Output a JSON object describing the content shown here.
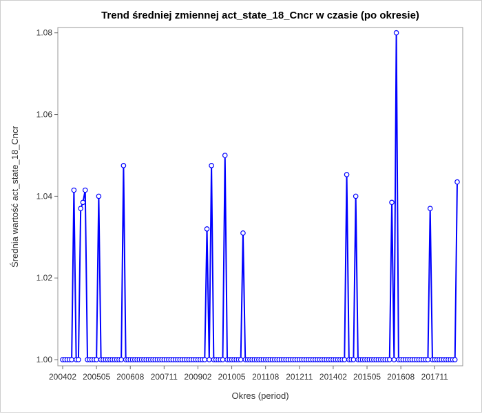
{
  "chart_data": {
    "type": "line",
    "title": "Trend średniej zmiennej act_state_18_Cncr w czasie (po okresie)",
    "x_label": "Okres (period)",
    "y_label": "Średnia wartość act_state_18_Cncr",
    "color": "#0000ff",
    "categories": [
      "200402",
      null,
      null,
      null,
      null,
      null,
      null,
      null,
      null,
      null,
      null,
      null,
      null,
      null,
      null,
      "200505",
      null,
      null,
      null,
      null,
      null,
      null,
      null,
      null,
      null,
      null,
      null,
      null,
      null,
      null,
      "200608",
      null,
      null,
      null,
      null,
      null,
      null,
      null,
      null,
      null,
      null,
      null,
      null,
      null,
      null,
      "200711",
      null,
      null,
      null,
      null,
      null,
      null,
      null,
      null,
      null,
      null,
      null,
      null,
      null,
      null,
      "200902",
      null,
      null,
      null,
      null,
      null,
      null,
      null,
      null,
      null,
      null,
      null,
      null,
      null,
      null,
      "201005",
      null,
      null,
      null,
      null,
      null,
      null,
      null,
      null,
      null,
      null,
      null,
      null,
      null,
      null,
      "201108",
      null,
      null,
      null,
      null,
      null,
      null,
      null,
      null,
      null,
      null,
      null,
      null,
      null,
      null,
      "201211",
      null,
      null,
      null,
      null,
      null,
      null,
      null,
      null,
      null,
      null,
      null,
      null,
      null,
      null,
      "201402",
      null,
      null,
      null,
      null,
      null,
      null,
      null,
      null,
      null,
      null,
      null,
      null,
      null,
      null,
      "201505",
      null,
      null,
      null,
      null,
      null,
      null,
      null,
      null,
      null,
      null,
      null,
      null,
      null,
      null,
      "201608",
      null,
      null,
      null,
      null,
      null,
      null,
      null,
      null,
      null,
      null,
      null,
      null,
      null,
      null,
      "201711",
      null,
      null,
      null,
      null,
      null,
      null,
      null,
      null,
      null,
      null
    ],
    "values": [
      1,
      1,
      1,
      1,
      1,
      1.0415,
      1,
      1,
      1.037,
      1.0385,
      1.0415,
      1,
      1,
      1,
      1,
      1,
      1.04,
      1,
      1,
      1,
      1,
      1,
      1,
      1,
      1,
      1,
      1,
      1.0475,
      1,
      1,
      1,
      1,
      1,
      1,
      1,
      1,
      1,
      1,
      1,
      1,
      1,
      1,
      1,
      1,
      1,
      1,
      1,
      1,
      1,
      1,
      1,
      1,
      1,
      1,
      1,
      1,
      1,
      1,
      1,
      1,
      1,
      1,
      1,
      1,
      1.032,
      1,
      1.0475,
      1,
      1,
      1,
      1,
      1,
      1.05,
      1,
      1,
      1,
      1,
      1,
      1,
      1,
      1.031,
      1,
      1,
      1,
      1,
      1,
      1,
      1,
      1,
      1,
      1,
      1,
      1,
      1,
      1,
      1,
      1,
      1,
      1,
      1,
      1,
      1,
      1,
      1,
      1,
      1,
      1,
      1,
      1,
      1,
      1,
      1,
      1,
      1,
      1,
      1,
      1,
      1,
      1,
      1,
      1,
      1,
      1,
      1,
      1,
      1,
      1.0453,
      1,
      1,
      1,
      1.04,
      1,
      1,
      1,
      1,
      1,
      1,
      1,
      1,
      1,
      1,
      1,
      1,
      1,
      1,
      1,
      1.0385,
      1,
      1.08,
      1,
      1,
      1,
      1,
      1,
      1,
      1,
      1,
      1,
      1,
      1,
      1,
      1,
      1,
      1.037,
      1,
      1,
      1,
      1,
      1,
      1,
      1,
      1,
      1,
      1,
      1,
      1.0435
    ],
    "ylim": [
      0.9985,
      1.0813
    ],
    "yticks": [
      {
        "value": 1.0,
        "label": "1.00"
      },
      {
        "value": 1.02,
        "label": "1.02"
      },
      {
        "value": 1.04,
        "label": "1.04"
      },
      {
        "value": 1.06,
        "label": "1.06"
      },
      {
        "value": 1.08,
        "label": "1.08"
      }
    ]
  }
}
